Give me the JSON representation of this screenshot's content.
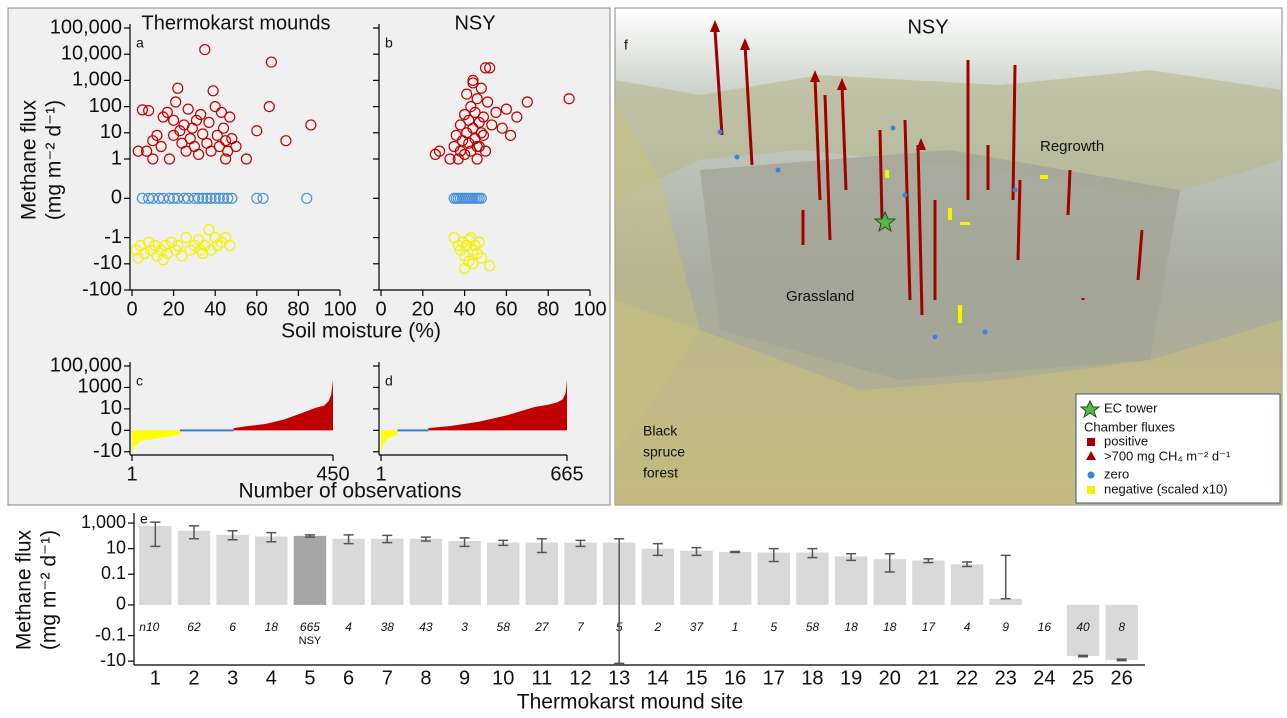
{
  "chart_data": [
    {
      "type": "scatter",
      "panel_label": "a",
      "title": "Thermokarst mounds",
      "xlabel": "Soil moisture (%)",
      "ylabel": [
        "Methane flux",
        "(mg m⁻² d⁻¹)"
      ],
      "xlim": [
        0,
        100
      ],
      "xticks": [
        0,
        20,
        40,
        60,
        80,
        100
      ],
      "ylim": [
        -100,
        100000
      ],
      "yscale": "symlog",
      "linthresh": 1,
      "linscale": 1.5,
      "ytick_labels": true,
      "yticks": [
        {
          "value": 100000,
          "label": "100,000"
        },
        {
          "value": 10000,
          "label": "10,000"
        },
        {
          "value": 1000,
          "label": "1,000"
        },
        100,
        10,
        1,
        0,
        -1,
        -10,
        -100
      ],
      "series": [
        {
          "color": "#c00000",
          "x": [
            5,
            8,
            7,
            10,
            12,
            14,
            15,
            17,
            18,
            20,
            20,
            21,
            22,
            23,
            24,
            25,
            26,
            27,
            28,
            29,
            30,
            31,
            32,
            33,
            34,
            35,
            36,
            37,
            38,
            39,
            40,
            41,
            42,
            43,
            44,
            45,
            46,
            47,
            48,
            50,
            55,
            60,
            66,
            67,
            74,
            86,
            10,
            3,
            45
          ],
          "values": [
            75,
            70,
            2,
            5,
            8,
            3,
            40,
            60,
            1,
            30,
            8,
            150,
            500,
            12,
            4,
            20,
            2,
            80,
            6,
            15,
            3,
            30,
            1.5,
            50,
            9,
            15000,
            4,
            25,
            2,
            400,
            100,
            8,
            3,
            60,
            15,
            5,
            2,
            40,
            6,
            3,
            1,
            12,
            100,
            5000,
            5,
            20,
            1,
            2,
            1
          ]
        },
        {
          "color": "#4a90d9",
          "x": [
            5,
            8,
            10,
            13,
            15,
            18,
            20,
            22,
            25,
            27,
            30,
            32,
            34,
            36,
            38,
            40,
            42,
            44,
            46,
            48,
            60,
            63,
            84
          ],
          "values": [
            0,
            0,
            0,
            0,
            0,
            0,
            0,
            0,
            0,
            0,
            0,
            0,
            0,
            0,
            0,
            0,
            0,
            0,
            0,
            0,
            0,
            0,
            0
          ]
        },
        {
          "color": "#f2f200",
          "x": [
            2,
            4,
            6,
            8,
            9,
            11,
            12,
            14,
            16,
            17,
            19,
            21,
            22,
            24,
            26,
            28,
            30,
            32,
            34,
            35,
            37,
            38,
            40,
            41,
            43,
            45,
            47,
            3,
            15,
            33
          ],
          "values": [
            -3,
            -2,
            -4,
            -1.5,
            -3,
            -2,
            -5,
            -3,
            -2,
            -4,
            -1.5,
            -3,
            -2,
            -5,
            -1,
            -3,
            -2,
            -1.2,
            -4,
            -2,
            -0.8,
            -3,
            -1,
            -2,
            -1.5,
            -1,
            -2,
            -6,
            -7,
            -3
          ]
        }
      ]
    },
    {
      "type": "scatter",
      "panel_label": "b",
      "title": "NSY",
      "xlim": [
        0,
        100
      ],
      "xticks": [
        0,
        20,
        40,
        60,
        80,
        100
      ],
      "ylim": [
        -100,
        100000
      ],
      "yscale": "symlog",
      "linthresh": 1,
      "linscale": 1.5,
      "ytick_labels": false,
      "yticks": [
        100000,
        10000,
        1000,
        100,
        10,
        1,
        0,
        -1,
        -10,
        -100
      ],
      "series": [
        {
          "color": "#c00000",
          "x": [
            26,
            28,
            33,
            35,
            36,
            37,
            38,
            38,
            39,
            40,
            40,
            41,
            41,
            42,
            42,
            43,
            43,
            44,
            44,
            45,
            45,
            46,
            46,
            47,
            47,
            48,
            48,
            49,
            50,
            50,
            51,
            52,
            53,
            55,
            58,
            60,
            62,
            65,
            70,
            90,
            44,
            46,
            49
          ],
          "values": [
            1.5,
            2,
            1,
            3,
            8,
            1,
            20,
            2,
            5,
            50,
            1.5,
            10,
            300,
            4,
            30,
            100,
            2,
            15,
            800,
            6,
            60,
            200,
            1,
            25,
            3,
            500,
            10,
            40,
            3000,
            2,
            150,
            3000,
            20,
            60,
            15,
            80,
            8,
            40,
            150,
            200,
            1000,
            3,
            8
          ]
        },
        {
          "color": "#4a90d9",
          "x": [
            35,
            36,
            37,
            38,
            39,
            40,
            41,
            42,
            43,
            44,
            45,
            46,
            47,
            48
          ],
          "values": [
            0,
            0,
            0,
            0,
            0,
            0,
            0,
            0,
            0,
            0,
            0,
            0,
            0,
            0
          ]
        },
        {
          "color": "#f2f200",
          "x": [
            35,
            37,
            38,
            39,
            40,
            41,
            42,
            43,
            44,
            45,
            46,
            47,
            48,
            40,
            52,
            44,
            42
          ],
          "values": [
            -1,
            -2,
            -3,
            -1.5,
            -5,
            -2,
            -8,
            -1,
            -3,
            -2,
            -4,
            -1.5,
            -6,
            -15,
            -12,
            -10,
            -1.2
          ]
        }
      ]
    },
    {
      "type": "area",
      "panel_label": "c",
      "xlabel": "Number of observations",
      "xlim": [
        1,
        450
      ],
      "xticks": [
        1,
        450
      ],
      "ylim": [
        -20,
        100000
      ],
      "yscale": "symlog",
      "linthresh": 10,
      "linscale": 2,
      "ytick_labels": true,
      "yticks": [
        {
          "value": 100000,
          "label": "100,000"
        },
        1000,
        10,
        0,
        -10
      ],
      "series": [
        {
          "color": "#ffff00",
          "x": [
            1,
            5,
            20,
            50,
            80,
            108
          ],
          "values": [
            -15,
            -8,
            -5,
            -4,
            -3,
            -2
          ]
        },
        {
          "color": "#2f7fd0",
          "x": [
            108,
            228
          ],
          "values": [
            0,
            0
          ]
        },
        {
          "color": "#c00000",
          "x": [
            228,
            260,
            300,
            340,
            380,
            410,
            430,
            440,
            446,
            450
          ],
          "values": [
            1,
            2,
            3,
            5,
            8,
            12,
            20,
            50,
            200,
            5000
          ]
        }
      ]
    },
    {
      "type": "area",
      "panel_label": "d",
      "xlim": [
        1,
        665
      ],
      "xticks": [
        1,
        665
      ],
      "ylim": [
        -20,
        100000
      ],
      "yscale": "symlog",
      "linthresh": 10,
      "linscale": 2,
      "ytick_labels": false,
      "yticks": [
        100000,
        1000,
        10,
        0,
        -10
      ],
      "series": [
        {
          "color": "#ffff00",
          "x": [
            1,
            5,
            20,
            40,
            60
          ],
          "values": [
            -15,
            -8,
            -4,
            -3,
            -2
          ]
        },
        {
          "color": "#2f7fd0",
          "x": [
            60,
            170
          ],
          "values": [
            0,
            0
          ]
        },
        {
          "color": "#c00000",
          "x": [
            170,
            250,
            350,
            450,
            550,
            600,
            630,
            650,
            660,
            665
          ],
          "values": [
            1,
            2,
            4,
            7,
            15,
            25,
            40,
            80,
            300,
            5000
          ]
        }
      ]
    },
    {
      "type": "bar",
      "panel_label": "e",
      "xlabel": "Thermokarst mound site",
      "ylabel": [
        "Methane flux",
        "(mg m⁻² d⁻¹)"
      ],
      "ylim": [
        -20,
        3000
      ],
      "yscale": "symlog",
      "linthresh": 0.1,
      "linscale": 2.4,
      "ytick_labels": true,
      "yticks": [
        {
          "value": 1000,
          "label": "1,000"
        },
        10,
        0.1,
        0,
        -0.1,
        -10
      ],
      "categories": [
        "1",
        "2",
        "3",
        "4",
        "5",
        "6",
        "7",
        "8",
        "9",
        "10",
        "11",
        "12",
        "13",
        "14",
        "15",
        "16",
        "17",
        "18",
        "19",
        "20",
        "21",
        "22",
        "23",
        "24",
        "25",
        "26"
      ],
      "values": [
        600,
        250,
        120,
        90,
        100,
        60,
        60,
        60,
        40,
        30,
        30,
        30,
        30,
        10,
        7,
        5.5,
        5,
        5,
        2.5,
        1.5,
        1.2,
        0.6,
        0.02,
        null,
        -4,
        -8
      ],
      "error_low": [
        15,
        60,
        50,
        35,
        80,
        25,
        30,
        40,
        15,
        18,
        5,
        15,
        -15,
        3,
        3,
        5,
        1,
        2,
        1.2,
        0.15,
        0.8,
        0.4,
        0.02,
        null,
        -4.5,
        -9
      ],
      "error_high": [
        1200,
        600,
        250,
        180,
        120,
        120,
        110,
        80,
        70,
        45,
        60,
        45,
        60,
        25,
        12,
        6,
        10,
        10,
        4,
        4,
        1.6,
        0.9,
        3,
        null,
        -3.5,
        -7
      ],
      "colors": [
        "#d9d9d9",
        "#d9d9d9",
        "#d9d9d9",
        "#d9d9d9",
        "#a6a6a6",
        "#d9d9d9",
        "#d9d9d9",
        "#d9d9d9",
        "#d9d9d9",
        "#d9d9d9",
        "#d9d9d9",
        "#d9d9d9",
        "#d9d9d9",
        "#d9d9d9",
        "#d9d9d9",
        "#d9d9d9",
        "#d9d9d9",
        "#d9d9d9",
        "#d9d9d9",
        "#d9d9d9",
        "#d9d9d9",
        "#d9d9d9",
        "#d9d9d9",
        "#d9d9d9",
        "#d9d9d9",
        "#d9d9d9"
      ],
      "n_labels": [
        "n10",
        "62",
        "6",
        "18",
        "665",
        "4",
        "38",
        "43",
        "3",
        "58",
        "27",
        "7",
        "5",
        "2",
        "37",
        "1",
        "5",
        "58",
        "18",
        "18",
        "17",
        "4",
        "9",
        "16",
        "40",
        "8"
      ],
      "sublabels": [
        null,
        null,
        null,
        null,
        "NSY",
        null,
        null,
        null,
        null,
        null,
        null,
        null,
        null,
        null,
        null,
        null,
        null,
        null,
        null,
        null,
        null,
        null,
        null,
        null,
        null,
        null
      ]
    }
  ],
  "panel_f": {
    "panel_label": "f",
    "title": "NSY",
    "places": [
      "Regrowth",
      "Grassland"
    ],
    "forest_label": [
      "Black",
      "spruce",
      "forest"
    ],
    "legend": {
      "tower": "EC tower",
      "header": "Chamber fluxes",
      "items": [
        "positive",
        ">700 mg CH₄ m⁻² d⁻¹",
        "zero",
        "negative (scaled x10)"
      ]
    }
  }
}
